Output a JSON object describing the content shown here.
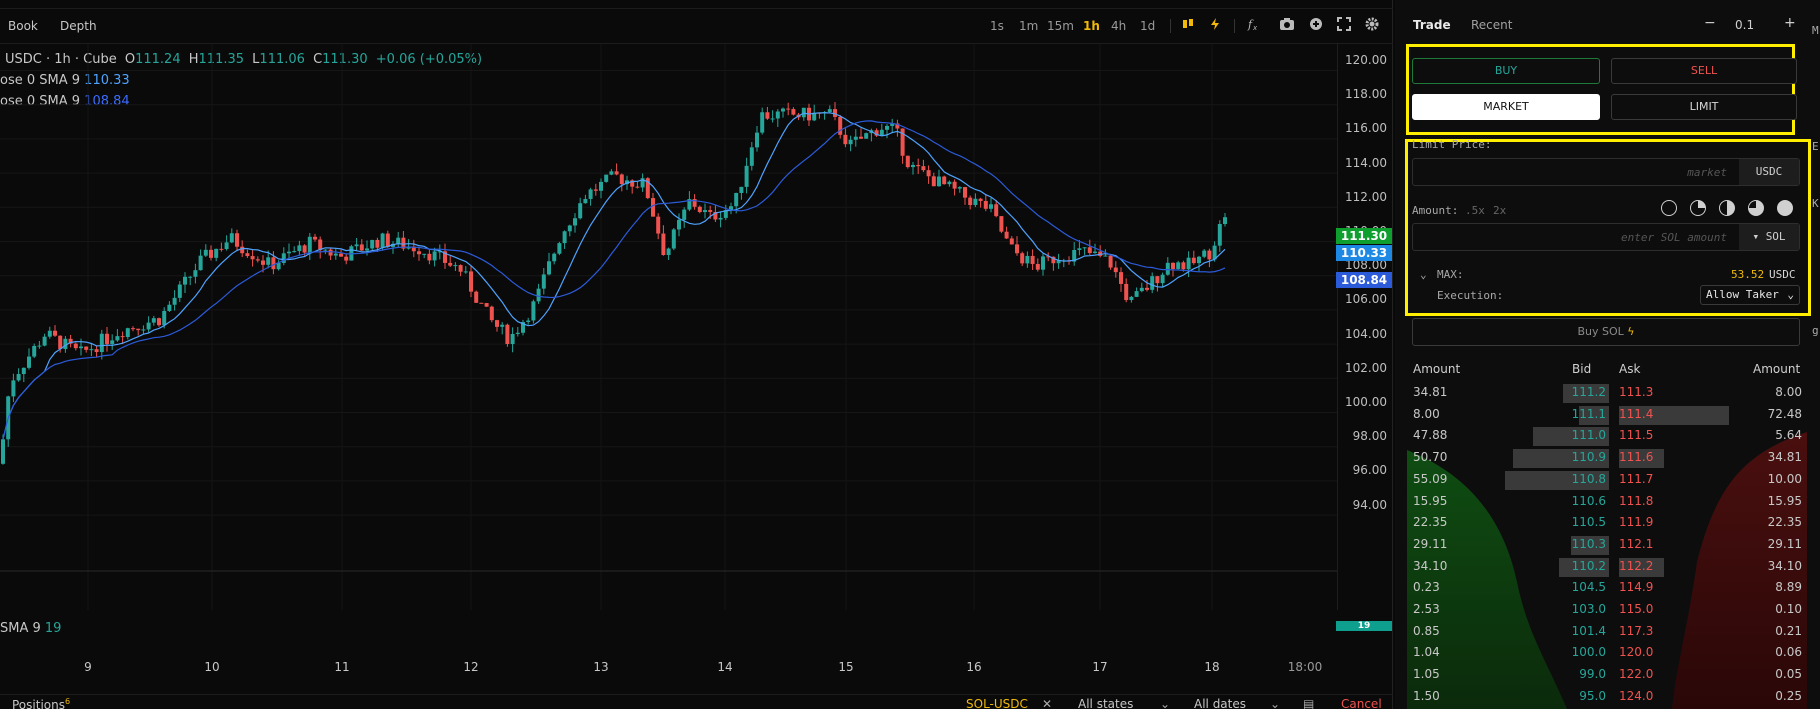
{
  "header": {
    "tabs": [
      "Book",
      "Depth"
    ],
    "timeframes": [
      "1s",
      "1m",
      "15m",
      "1h",
      "4h",
      "1d"
    ],
    "active_timeframe": "1h"
  },
  "legend": {
    "symbol": "USDC · 1h · Cube",
    "o_label": "O",
    "o": "111.24",
    "h_label": "H",
    "h": "111.35",
    "l_label": "L",
    "l": "111.06",
    "c_label": "C",
    "c": "111.30",
    "change": "+0.06 (+0.05%)",
    "sma_a_label": "ose 0 SMA 9",
    "sma_a_value": "110.33",
    "sma_b_label": "ose 0 SMA 9",
    "sma_b_value": "108.84",
    "volume_label": "SMA 9",
    "volume_value": "19"
  },
  "price_axis": {
    "ticks": [
      "120.00",
      "118.00",
      "116.00",
      "114.00",
      "112.00",
      "110.00",
      "108.00",
      "106.00",
      "104.00",
      "102.00",
      "100.00",
      "98.00",
      "96.00",
      "94.00"
    ],
    "last_price": "111.30",
    "sma_a_tag": "110.33",
    "sma_b_tag": "108.84",
    "volume_tag": "19"
  },
  "time_axis": {
    "ticks": [
      "9",
      "10",
      "11",
      "12",
      "13",
      "14",
      "15",
      "16",
      "17",
      "18",
      "18:00"
    ]
  },
  "bottom_bar": {
    "positions_label": "Positions",
    "positions_count": "6",
    "pair_filter": "SOL-USDC",
    "states_filter": "All states",
    "dates_filter": "All dates",
    "cancel_label": "Cancel"
  },
  "trade_panel": {
    "tabs": [
      "Trade",
      "Recent"
    ],
    "step_value": "0.1",
    "buy_label": "BUY",
    "sell_label": "SELL",
    "market_label": "MARKET",
    "limit_label": "LIMIT",
    "limit_price_label": "Limit Price:",
    "limit_price_placeholder": "market",
    "quote_currency": "USDC",
    "amount_label": "Amount:",
    "multipliers": [
      ".5x",
      "2x"
    ],
    "amount_placeholder": "enter SOL amount",
    "base_currency": "SOL",
    "max_label": "MAX:",
    "max_value": "53.52",
    "max_currency": "USDC",
    "execution_label": "Execution:",
    "execution_value": "Allow Taker",
    "submit_label": "Buy SOL"
  },
  "order_book": {
    "headers": {
      "bid_amount": "Amount",
      "bid": "Bid",
      "ask": "Ask",
      "ask_amount": "Amount"
    },
    "rows": [
      {
        "bid_amount": "34.81",
        "bid": "111.2",
        "ask": "111.3",
        "ask_amount": "8.00"
      },
      {
        "bid_amount": "8.00",
        "bid": "111.1",
        "ask": "111.4",
        "ask_amount": "72.48"
      },
      {
        "bid_amount": "47.88",
        "bid": "111.0",
        "ask": "111.5",
        "ask_amount": "5.64"
      },
      {
        "bid_amount": "50.70",
        "bid": "110.9",
        "ask": "111.6",
        "ask_amount": "34.81"
      },
      {
        "bid_amount": "55.09",
        "bid": "110.8",
        "ask": "111.7",
        "ask_amount": "10.00"
      },
      {
        "bid_amount": "15.95",
        "bid": "110.6",
        "ask": "111.8",
        "ask_amount": "15.95"
      },
      {
        "bid_amount": "22.35",
        "bid": "110.5",
        "ask": "111.9",
        "ask_amount": "22.35"
      },
      {
        "bid_amount": "29.11",
        "bid": "110.3",
        "ask": "112.1",
        "ask_amount": "29.11"
      },
      {
        "bid_amount": "34.10",
        "bid": "110.2",
        "ask": "112.2",
        "ask_amount": "34.10"
      },
      {
        "bid_amount": "0.23",
        "bid": "104.5",
        "ask": "114.9",
        "ask_amount": "8.89"
      },
      {
        "bid_amount": "2.53",
        "bid": "103.0",
        "ask": "115.0",
        "ask_amount": "0.10"
      },
      {
        "bid_amount": "0.85",
        "bid": "101.4",
        "ask": "117.3",
        "ask_amount": "0.21"
      },
      {
        "bid_amount": "1.04",
        "bid": "100.0",
        "ask": "120.0",
        "ask_amount": "0.06"
      },
      {
        "bid_amount": "1.05",
        "bid": "99.0",
        "ask": "122.0",
        "ask_amount": "0.05"
      },
      {
        "bid_amount": "1.50",
        "bid": "95.0",
        "ask": "124.0",
        "ask_amount": "0.25"
      }
    ]
  },
  "colors": {
    "up": "#26a69a",
    "down": "#ef5350",
    "accent": "#f0b90b",
    "highlight": "#ffee00",
    "sma_a": "#4fa3ff",
    "sma_b": "#2c5bd9"
  }
}
